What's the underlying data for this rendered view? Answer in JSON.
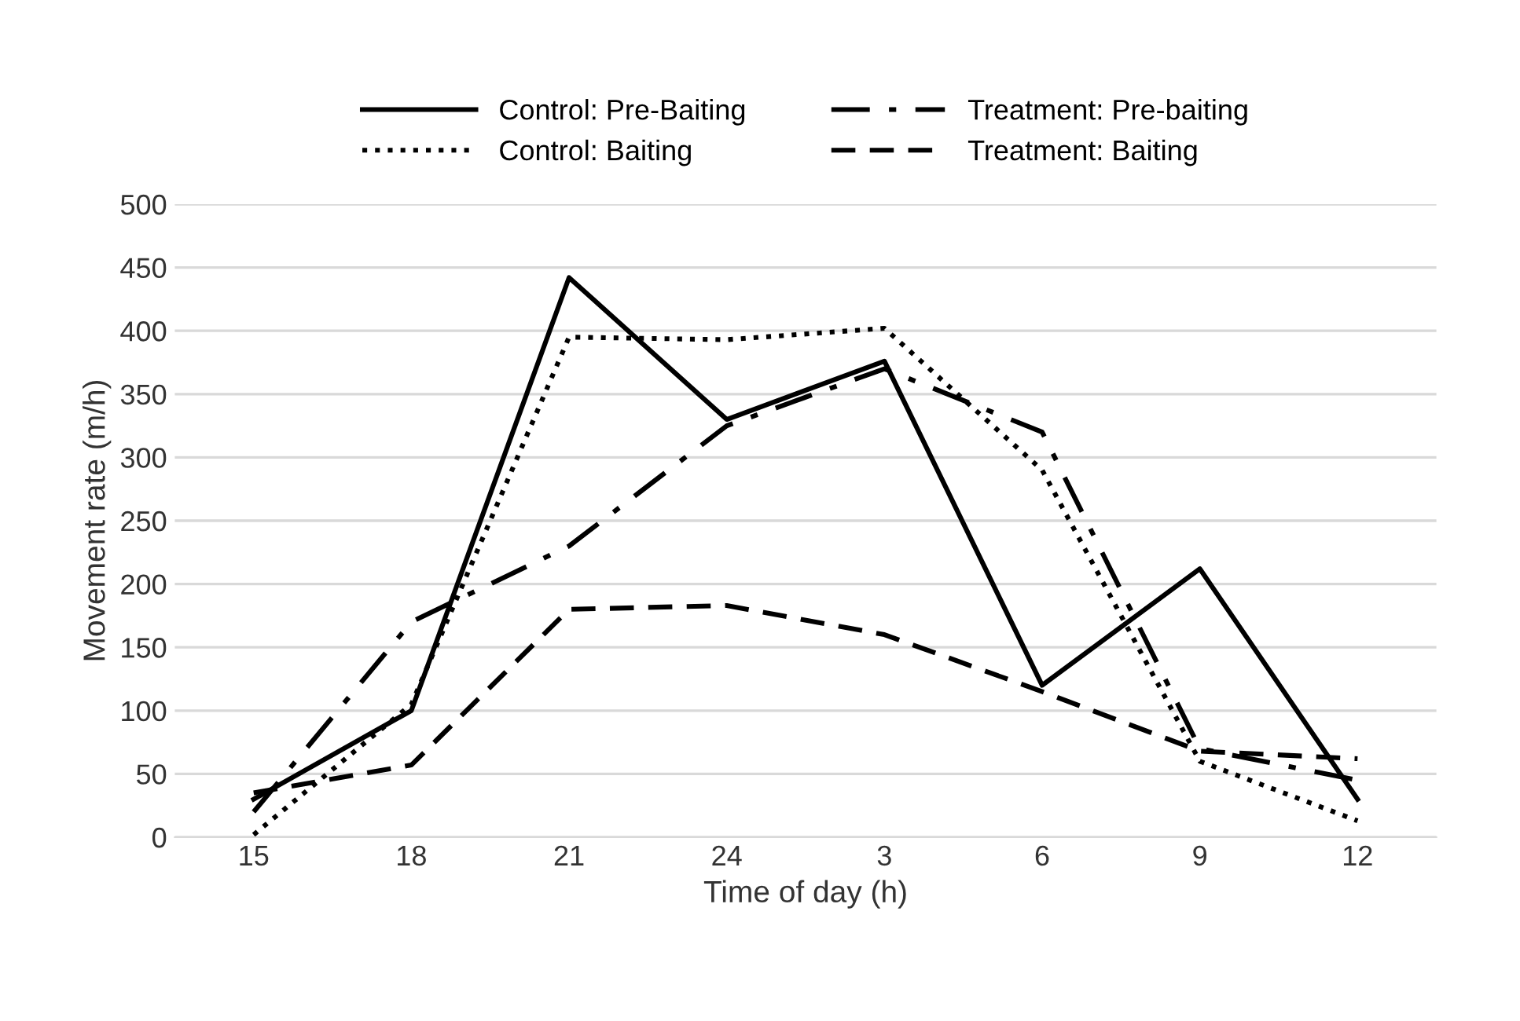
{
  "chart_data": {
    "type": "line",
    "xlabel": "Time of day (h)",
    "ylabel": "Movement rate (m/h)",
    "categories": [
      "15",
      "18",
      "21",
      "24",
      "3",
      "6",
      "9",
      "12"
    ],
    "ylim": [
      0,
      500
    ],
    "yticks": [
      0,
      50,
      100,
      150,
      200,
      250,
      300,
      350,
      400,
      450,
      500
    ],
    "grid": "y",
    "legend": "top",
    "marker": "none",
    "series": [
      {
        "name": "Control: Pre-Baiting",
        "color": "#000000",
        "line_style": "solid",
        "values": [
          30,
          100,
          442,
          330,
          376,
          120,
          212,
          30
        ]
      },
      {
        "name": "Control: Baiting",
        "color": "#000000",
        "line_style": "dotted",
        "values": [
          2,
          105,
          395,
          393,
          402,
          290,
          60,
          13
        ]
      },
      {
        "name": "Treatment: Pre-baiting",
        "color": "#000000",
        "line_style": "dashdot",
        "values": [
          20,
          170,
          230,
          325,
          370,
          320,
          70,
          45
        ]
      },
      {
        "name": "Treatment: Baiting",
        "color": "#000000",
        "line_style": "dashed",
        "values": [
          35,
          57,
          180,
          183,
          160,
          115,
          68,
          62
        ]
      }
    ]
  }
}
